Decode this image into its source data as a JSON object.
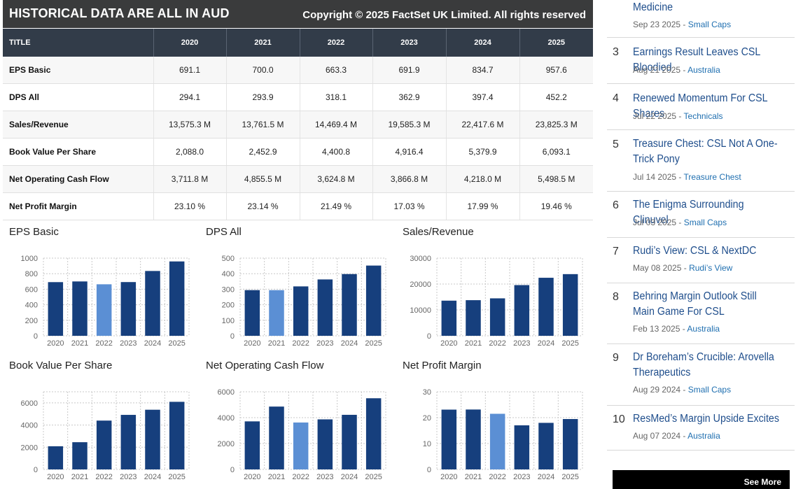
{
  "banner": {
    "title": "HISTORICAL DATA ARE ALL IN AUD",
    "copyright": "Copyright © 2025 FactSet UK Limited. All rights reserved"
  },
  "table": {
    "headers": [
      "TITLE",
      "2020",
      "2021",
      "2022",
      "2023",
      "2024",
      "2025"
    ],
    "rows": [
      {
        "label": "EPS Basic",
        "values": [
          "691.1",
          "700.0",
          "663.3",
          "691.9",
          "834.7",
          "957.6"
        ]
      },
      {
        "label": "DPS All",
        "values": [
          "294.1",
          "293.9",
          "318.1",
          "362.9",
          "397.4",
          "452.2"
        ]
      },
      {
        "label": "Sales/Revenue",
        "values": [
          "13,575.3 M",
          "13,761.5 M",
          "14,469.4 M",
          "19,585.3 M",
          "22,417.6 M",
          "23,825.3 M"
        ]
      },
      {
        "label": "Book Value Per Share",
        "values": [
          "2,088.0",
          "2,452.9",
          "4,400.8",
          "4,916.4",
          "5,379.9",
          "6,093.1"
        ]
      },
      {
        "label": "Net Operating Cash Flow",
        "values": [
          "3,711.8 M",
          "4,855.5 M",
          "3,624.8 M",
          "3,866.8 M",
          "4,218.0 M",
          "5,498.5 M"
        ]
      },
      {
        "label": "Net Profit Margin",
        "values": [
          "23.10 %",
          "23.14 %",
          "21.49 %",
          "17.03 %",
          "17.99 %",
          "19.46 %"
        ]
      }
    ]
  },
  "colors": {
    "bar": "#163f7d",
    "bar_highlight": "#5b8fd4",
    "grid": "#c8c8c8"
  },
  "chart_data": [
    {
      "type": "bar",
      "title": "EPS Basic",
      "categories": [
        "2020",
        "2021",
        "2022",
        "2023",
        "2024",
        "2025"
      ],
      "values": [
        691.1,
        700.0,
        663.3,
        691.9,
        834.7,
        957.6
      ],
      "highlight_index": 2,
      "ylim": [
        0,
        1000
      ],
      "yticks": [
        0,
        200,
        400,
        600,
        800,
        1000
      ]
    },
    {
      "type": "bar",
      "title": "DPS All",
      "categories": [
        "2020",
        "2021",
        "2022",
        "2023",
        "2024",
        "2025"
      ],
      "values": [
        294.1,
        293.9,
        318.1,
        362.9,
        397.4,
        452.2
      ],
      "highlight_index": 1,
      "ylim": [
        0,
        500
      ],
      "yticks": [
        0,
        100,
        200,
        300,
        400,
        500
      ]
    },
    {
      "type": "bar",
      "title": "Sales/Revenue",
      "categories": [
        "2020",
        "2021",
        "2022",
        "2023",
        "2024",
        "2025"
      ],
      "values": [
        13575.3,
        13761.5,
        14469.4,
        19585.3,
        22417.6,
        23825.3
      ],
      "highlight_index": -1,
      "ylim": [
        0,
        30000
      ],
      "yticks": [
        0,
        10000,
        20000,
        30000
      ]
    },
    {
      "type": "bar",
      "title": "Book Value Per Share",
      "categories": [
        "2020",
        "2021",
        "2022",
        "2023",
        "2024",
        "2025"
      ],
      "values": [
        2088.0,
        2452.9,
        4400.8,
        4916.4,
        5379.9,
        6093.1
      ],
      "highlight_index": -1,
      "ylim": [
        0,
        7000
      ],
      "yticks": [
        0,
        2000,
        4000,
        6000
      ]
    },
    {
      "type": "bar",
      "title": "Net Operating Cash Flow",
      "categories": [
        "2020",
        "2021",
        "2022",
        "2023",
        "2024",
        "2025"
      ],
      "values": [
        3711.8,
        4855.5,
        3624.8,
        3866.8,
        4218.0,
        5498.5
      ],
      "highlight_index": 2,
      "ylim": [
        0,
        6000
      ],
      "yticks": [
        0,
        2000,
        4000,
        6000
      ]
    },
    {
      "type": "bar",
      "title": "Net Profit Margin",
      "categories": [
        "2020",
        "2021",
        "2022",
        "2023",
        "2024",
        "2025"
      ],
      "values": [
        23.1,
        23.14,
        21.49,
        17.03,
        17.99,
        19.46
      ],
      "highlight_index": 2,
      "ylim": [
        0,
        30
      ],
      "yticks": [
        0,
        10,
        20,
        30
      ]
    }
  ],
  "articles": [
    {
      "num": "",
      "title": "Medicine",
      "date": "Sep 23 2025",
      "category": "Small Caps"
    },
    {
      "num": "3",
      "title": "Earnings Result Leaves CSL Bloodied",
      "date": "Aug 21 2025",
      "category": "Australia"
    },
    {
      "num": "4",
      "title": "Renewed Momentum For CSL Shares",
      "date": "Jul 22 2025",
      "category": "Technicals"
    },
    {
      "num": "5",
      "title": "Treasure Chest: CSL Not A One-Trick Pony",
      "date": "Jul 14 2025",
      "category": "Treasure Chest"
    },
    {
      "num": "6",
      "title": "The Enigma Surrounding Clinuvel",
      "date": "Jul 03 2025",
      "category": "Small Caps"
    },
    {
      "num": "7",
      "title": "Rudi’s View: CSL & NextDC",
      "date": "May 08 2025",
      "category": "Rudi’s View"
    },
    {
      "num": "8",
      "title": "Behring Margin Outlook Still Main Game For CSL",
      "date": "Feb 13 2025",
      "category": "Australia"
    },
    {
      "num": "9",
      "title": "Dr Boreham’s Crucible: Arovella Therapeutics",
      "date": "Aug 29 2024",
      "category": "Small Caps"
    },
    {
      "num": "10",
      "title": "ResMed’s Margin Upside Excites",
      "date": "Aug 07 2024",
      "category": "Australia"
    }
  ],
  "date_separator": " - ",
  "see_more": "See More"
}
